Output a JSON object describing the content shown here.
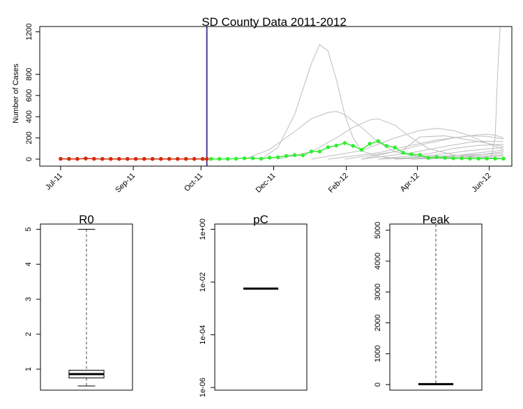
{
  "chart_data": [
    {
      "type": "line",
      "title": "SD County Data 2011-2012",
      "ylabel": "Number of Cases",
      "xlabel": "",
      "x_ticks": [
        "Jul-11",
        "Sep-11",
        "Oct-11",
        "Dec-11",
        "Feb-12",
        "Apr-12",
        "Jun-12"
      ],
      "y_ticks": [
        0,
        200,
        400,
        600,
        800,
        1200
      ],
      "ylim": [
        0,
        1250
      ],
      "x_range_weeks": [
        -2.5,
        54
      ],
      "tick_weeks": [
        0,
        8.7,
        16.8,
        25.5,
        34.2,
        42.7,
        51.3
      ],
      "cutoff_week": 17.5,
      "colors": {
        "observed": "#d42a0a",
        "forecast": "#33ee33",
        "ensemble": "#bdbdbd",
        "cutoff": "#3b2a8c"
      },
      "observed": {
        "x": [
          0,
          1,
          2,
          3,
          4,
          5,
          6,
          7,
          8,
          9,
          10,
          11,
          12,
          13,
          14,
          15,
          16,
          17,
          17.5
        ],
        "y": [
          3,
          2,
          2,
          6,
          3,
          2,
          2,
          2,
          2,
          2,
          2,
          2,
          2,
          2,
          2,
          2,
          2,
          2,
          2
        ]
      },
      "forecast": {
        "x": [
          18,
          19,
          20,
          21,
          22,
          23,
          24,
          25,
          26,
          27,
          28,
          29,
          30,
          31,
          32,
          33,
          34,
          35,
          36,
          37,
          38,
          39,
          40,
          41,
          42,
          43,
          44,
          45,
          46,
          47,
          48,
          49,
          50,
          51,
          52,
          53
        ],
        "y": [
          2,
          2,
          2,
          4,
          8,
          8,
          4,
          14,
          18,
          30,
          38,
          36,
          72,
          72,
          112,
          128,
          152,
          125,
          88,
          145,
          170,
          125,
          110,
          60,
          45,
          40,
          12,
          20,
          12,
          8,
          8,
          5,
          5,
          5,
          5,
          5
        ]
      },
      "ensemble": [
        {
          "x": [
            24,
            26,
            28,
            30,
            31,
            32,
            33,
            34,
            35,
            36,
            38,
            40,
            43,
            47,
            53
          ],
          "y": [
            0,
            110,
            420,
            900,
            1080,
            1020,
            750,
            420,
            200,
            80,
            25,
            10,
            5,
            5,
            5
          ]
        },
        {
          "x": [
            22,
            25,
            28,
            30,
            32,
            33,
            34,
            36,
            38,
            40,
            43,
            47,
            53
          ],
          "y": [
            0,
            90,
            260,
            380,
            440,
            450,
            420,
            300,
            160,
            70,
            20,
            8,
            5
          ]
        },
        {
          "x": [
            26,
            30,
            33,
            35,
            37,
            38,
            40,
            42,
            44,
            47,
            50,
            53
          ],
          "y": [
            0,
            70,
            200,
            300,
            370,
            380,
            320,
            200,
            100,
            40,
            15,
            10
          ]
        },
        {
          "x": [
            30,
            36,
            40,
            43,
            45,
            47,
            49,
            51,
            53
          ],
          "y": [
            0,
            80,
            200,
            270,
            290,
            270,
            220,
            150,
            90
          ]
        },
        {
          "x": [
            32,
            38,
            42,
            45,
            48,
            50,
            51,
            52,
            53
          ],
          "y": [
            0,
            60,
            130,
            180,
            210,
            230,
            235,
            225,
            200
          ]
        },
        {
          "x": [
            34,
            40,
            44,
            47,
            49,
            51,
            53
          ],
          "y": [
            0,
            70,
            150,
            200,
            220,
            215,
            190
          ]
        },
        {
          "x": [
            36,
            42,
            46,
            49,
            51,
            53
          ],
          "y": [
            0,
            60,
            120,
            160,
            170,
            165
          ]
        },
        {
          "x": [
            38,
            44,
            47,
            50,
            53
          ],
          "y": [
            0,
            50,
            100,
            130,
            140
          ]
        },
        {
          "x": [
            40,
            45,
            49,
            53
          ],
          "y": [
            0,
            40,
            80,
            110
          ]
        },
        {
          "x": [
            42,
            47,
            50,
            53
          ],
          "y": [
            0,
            30,
            60,
            85
          ]
        },
        {
          "x": [
            44,
            48,
            51,
            53
          ],
          "y": [
            0,
            25,
            50,
            70
          ]
        },
        {
          "x": [
            36,
            41,
            43,
            46,
            49,
            53
          ],
          "y": [
            0,
            90,
            210,
            220,
            180,
            120
          ]
        },
        {
          "x": [
            38,
            46,
            50,
            53
          ],
          "y": [
            0,
            30,
            45,
            55
          ]
        },
        {
          "x": [
            40,
            47,
            53
          ],
          "y": [
            0,
            20,
            40
          ]
        },
        {
          "x": [
            42,
            49,
            53
          ],
          "y": [
            0,
            15,
            30
          ]
        },
        {
          "x": [
            51.5,
            52,
            52.3,
            52.6
          ],
          "y": [
            0,
            200,
            800,
            1260
          ]
        }
      ]
    },
    {
      "type": "box",
      "title": "R0",
      "y_ticks": [
        1,
        2,
        3,
        4,
        5
      ],
      "ylim": [
        0.4,
        5.15
      ],
      "box": {
        "min": 0.52,
        "q1": 0.75,
        "median": 0.86,
        "q3": 0.97,
        "max": 5.0
      }
    },
    {
      "type": "box",
      "title": "pC",
      "scale": "log10",
      "y_ticks": [
        "1e+00",
        "1e-02",
        "1e-04",
        "1e-06"
      ],
      "y_tick_values": [
        0,
        -2,
        -4,
        -6
      ],
      "ylim_log10": [
        -6.1,
        0.2
      ],
      "box": {
        "median_log10": -2.25
      }
    },
    {
      "type": "box",
      "title": "Peak",
      "y_ticks": [
        0,
        1000,
        2000,
        3000,
        4000,
        5000
      ],
      "ylim": [
        -180,
        5200
      ],
      "box": {
        "min": 0,
        "q1": 5,
        "median": 15,
        "q3": 30,
        "max": 5200
      }
    }
  ]
}
